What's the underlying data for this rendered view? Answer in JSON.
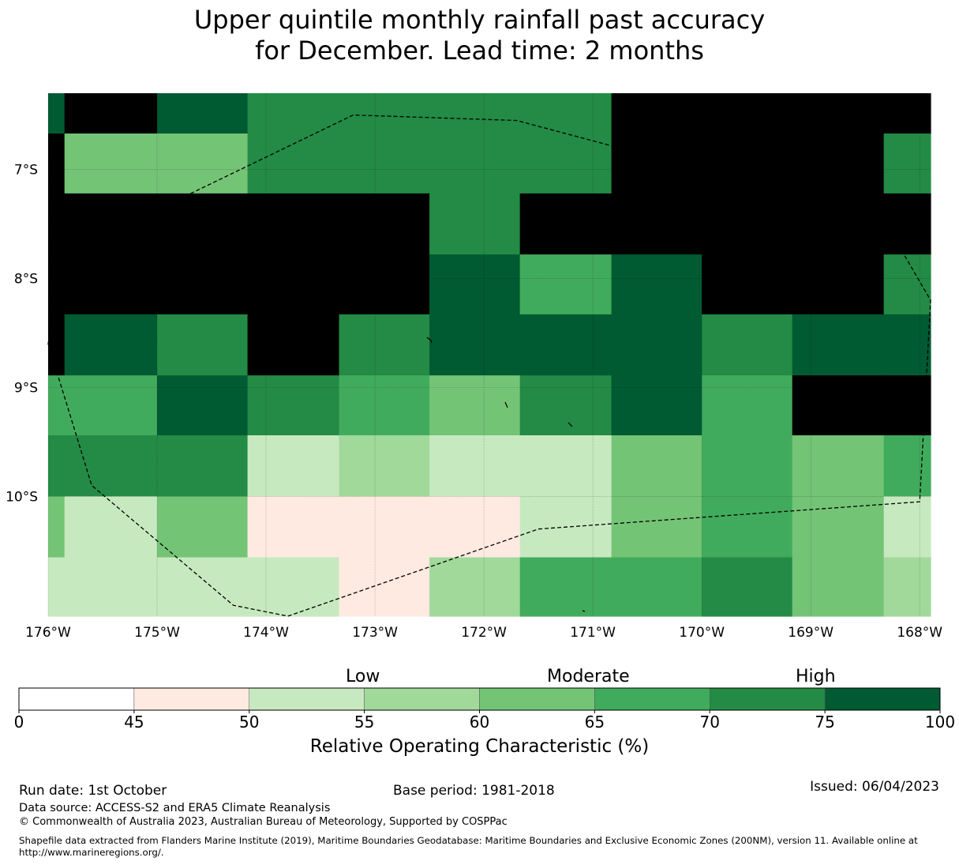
{
  "title_line1": "Upper quintile monthly rainfall past accuracy",
  "title_line2": "for December. Lead time: 2 months",
  "map": {
    "lon_labels": [
      "176°W",
      "175°W",
      "174°W",
      "173°W",
      "172°W",
      "171°W",
      "170°W",
      "169°W",
      "168°W"
    ],
    "lat_labels": [
      "7°S",
      "8°S",
      "9°S",
      "10°S"
    ],
    "col_edges_lon": [
      -176.0,
      -175.85,
      -175.0,
      -174.17,
      -173.33,
      -172.5,
      -171.67,
      -170.83,
      -170.0,
      -169.17,
      -168.33,
      -167.9
    ],
    "row_edges_lat": [
      -6.3,
      -6.67,
      -7.22,
      -7.78,
      -8.33,
      -8.89,
      -9.44,
      -10.0,
      -10.56,
      -11.1
    ],
    "bins": [
      [
        7,
        8,
        7,
        6,
        6,
        6,
        6,
        8,
        8,
        8,
        8
      ],
      [
        8,
        4,
        4,
        6,
        6,
        6,
        6,
        8,
        8,
        8,
        6
      ],
      [
        8,
        8,
        8,
        8,
        8,
        6,
        8,
        8,
        8,
        8,
        8
      ],
      [
        8,
        8,
        8,
        8,
        8,
        7,
        5,
        7,
        8,
        8,
        6
      ],
      [
        8,
        7,
        6,
        8,
        6,
        7,
        7,
        7,
        6,
        7,
        7
      ],
      [
        5,
        5,
        7,
        6,
        5,
        4,
        6,
        7,
        5,
        8,
        8
      ],
      [
        6,
        6,
        6,
        2,
        3,
        2,
        2,
        4,
        5,
        4,
        5
      ],
      [
        4,
        2,
        4,
        1,
        1,
        1,
        2,
        4,
        5,
        4,
        2
      ],
      [
        2,
        2,
        2,
        2,
        1,
        3,
        5,
        5,
        6,
        4,
        3
      ]
    ],
    "boundary_lonlat": [
      [
        -175.85,
        -7.78
      ],
      [
        -176.0,
        -8.6
      ],
      [
        -175.6,
        -9.9
      ],
      [
        -174.3,
        -11.0
      ],
      [
        -173.8,
        -11.1
      ],
      [
        -171.5,
        -10.3
      ],
      [
        -168.0,
        -10.05
      ],
      [
        -167.9,
        -8.2
      ],
      [
        -168.6,
        -7.0
      ],
      [
        -169.0,
        -6.85
      ],
      [
        -170.5,
        -6.87
      ],
      [
        -171.7,
        -6.55
      ],
      [
        -173.2,
        -6.5
      ]
    ]
  },
  "colorbar": {
    "levels": [
      "0",
      "45",
      "50",
      "55",
      "60",
      "65",
      "70",
      "75",
      "100"
    ],
    "colors": [
      "#ffffff",
      "#feeae1",
      "#c7e9c0",
      "#a1d99b",
      "#74c476",
      "#41ab5d",
      "#238b45",
      "#005a32"
    ],
    "category_low": "Low",
    "category_moderate": "Moderate",
    "category_high": "High",
    "label": "Relative Operating Characteristic (%)"
  },
  "footer": {
    "run_date": "Run date: 1st October",
    "base_period": "Base period: 1981-2018",
    "issued": "Issued: 06/04/2023",
    "data_source": "Data source: ACCESS-S2 and ERA5 Climate Reanalysis",
    "copyright": "© Commonwealth of Australia 2023, Australian Bureau of Meteorology, Supported by COSPPac",
    "shapefile": "Shapefile data extracted from Flanders Marine Institute (2019), Maritime Boundaries Geodatabase: Maritime Boundaries and Exclusive Economic Zones (200NM), version 11. Available online at http://www.marineregions.org/."
  }
}
